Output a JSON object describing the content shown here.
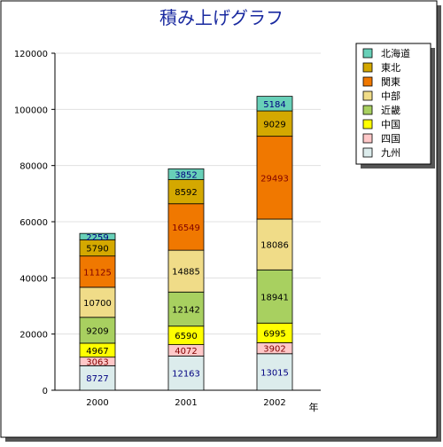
{
  "chart_data": {
    "type": "bar",
    "stacked": true,
    "title": "積み上げグラフ",
    "xlabel": "年",
    "ylabel": "",
    "categories": [
      "2000",
      "2001",
      "2002"
    ],
    "ylim": [
      0,
      120000
    ],
    "yticks": [
      "0",
      "20000",
      "40000",
      "60000",
      "80000",
      "100000",
      "120000"
    ],
    "grid": true,
    "legend_position": "right",
    "series": [
      {
        "name": "九州",
        "color": "#dcecec",
        "values": [
          8727,
          12163,
          13015
        ]
      },
      {
        "name": "四国",
        "color": "#ffc8c8",
        "values": [
          3063,
          4072,
          3902
        ]
      },
      {
        "name": "中国",
        "color": "#ffff00",
        "values": [
          4967,
          6590,
          6995
        ]
      },
      {
        "name": "近畿",
        "color": "#a8d060",
        "values": [
          9209,
          12142,
          18941
        ]
      },
      {
        "name": "中部",
        "color": "#f0dc88",
        "values": [
          10700,
          14885,
          18086
        ]
      },
      {
        "name": "関東",
        "color": "#f07800",
        "values": [
          11125,
          16549,
          29493
        ]
      },
      {
        "name": "東北",
        "color": "#d4a800",
        "values": [
          5790,
          8592,
          9029
        ]
      },
      {
        "name": "北海道",
        "color": "#68d0b8",
        "values": [
          2259,
          3852,
          5184
        ]
      }
    ],
    "label_colors": {
      "九州": "#000080",
      "四国": "#800000",
      "中国": "#000000",
      "近畿": "#000000",
      "中部": "#000000",
      "関東": "#800000",
      "東北": "#000000",
      "北海道": "#000080"
    },
    "title_color": "#1a2aa0"
  }
}
